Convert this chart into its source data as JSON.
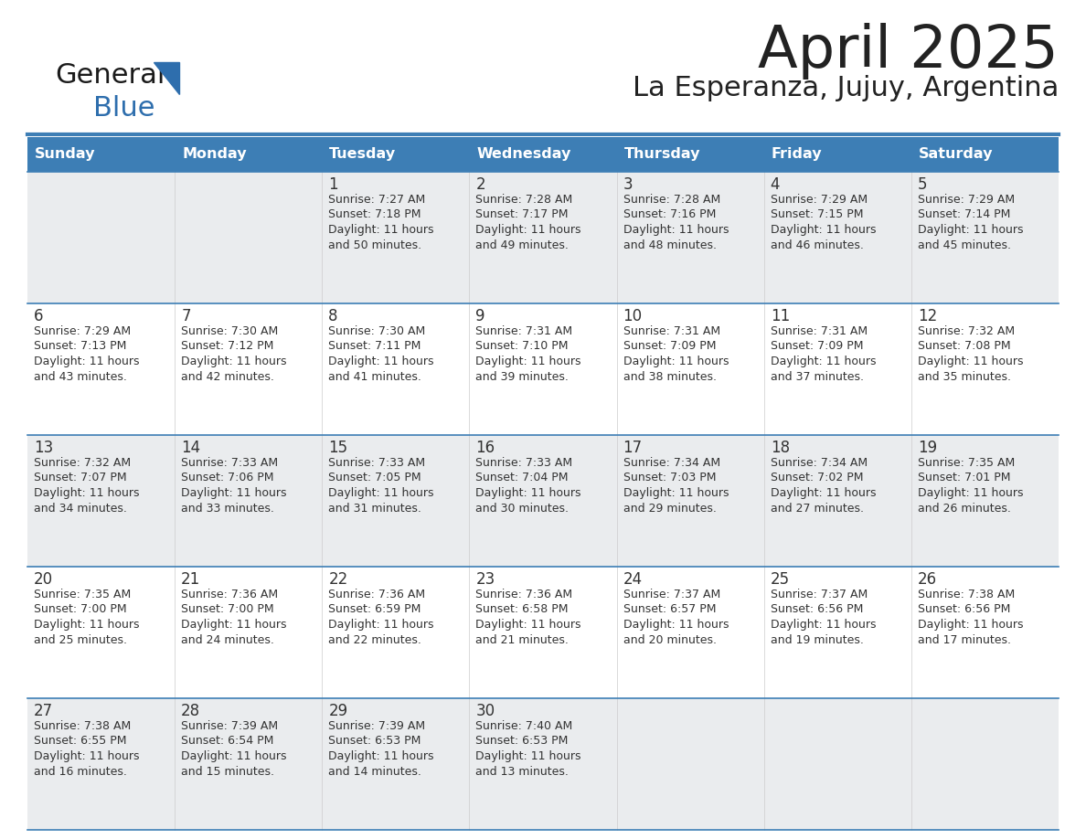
{
  "title": "April 2025",
  "subtitle": "La Esperanza, Jujuy, Argentina",
  "header_color": "#3D7EB5",
  "header_text_color": "#FFFFFF",
  "days_of_week": [
    "Sunday",
    "Monday",
    "Tuesday",
    "Wednesday",
    "Thursday",
    "Friday",
    "Saturday"
  ],
  "bg_color": "#FFFFFF",
  "row_colors": [
    "#F0F4F8",
    "#FFFFFF"
  ],
  "border_color": "#3D7EB5",
  "text_color": "#333333",
  "calendar_data": [
    [
      {
        "day": "",
        "sunrise": "",
        "sunset": "",
        "daylight": ""
      },
      {
        "day": "",
        "sunrise": "",
        "sunset": "",
        "daylight": ""
      },
      {
        "day": "1",
        "sunrise": "7:27 AM",
        "sunset": "7:18 PM",
        "daylight": "11 hours and 50 minutes."
      },
      {
        "day": "2",
        "sunrise": "7:28 AM",
        "sunset": "7:17 PM",
        "daylight": "11 hours and 49 minutes."
      },
      {
        "day": "3",
        "sunrise": "7:28 AM",
        "sunset": "7:16 PM",
        "daylight": "11 hours and 48 minutes."
      },
      {
        "day": "4",
        "sunrise": "7:29 AM",
        "sunset": "7:15 PM",
        "daylight": "11 hours and 46 minutes."
      },
      {
        "day": "5",
        "sunrise": "7:29 AM",
        "sunset": "7:14 PM",
        "daylight": "11 hours and 45 minutes."
      }
    ],
    [
      {
        "day": "6",
        "sunrise": "7:29 AM",
        "sunset": "7:13 PM",
        "daylight": "11 hours and 43 minutes."
      },
      {
        "day": "7",
        "sunrise": "7:30 AM",
        "sunset": "7:12 PM",
        "daylight": "11 hours and 42 minutes."
      },
      {
        "day": "8",
        "sunrise": "7:30 AM",
        "sunset": "7:11 PM",
        "daylight": "11 hours and 41 minutes."
      },
      {
        "day": "9",
        "sunrise": "7:31 AM",
        "sunset": "7:10 PM",
        "daylight": "11 hours and 39 minutes."
      },
      {
        "day": "10",
        "sunrise": "7:31 AM",
        "sunset": "7:09 PM",
        "daylight": "11 hours and 38 minutes."
      },
      {
        "day": "11",
        "sunrise": "7:31 AM",
        "sunset": "7:09 PM",
        "daylight": "11 hours and 37 minutes."
      },
      {
        "day": "12",
        "sunrise": "7:32 AM",
        "sunset": "7:08 PM",
        "daylight": "11 hours and 35 minutes."
      }
    ],
    [
      {
        "day": "13",
        "sunrise": "7:32 AM",
        "sunset": "7:07 PM",
        "daylight": "11 hours and 34 minutes."
      },
      {
        "day": "14",
        "sunrise": "7:33 AM",
        "sunset": "7:06 PM",
        "daylight": "11 hours and 33 minutes."
      },
      {
        "day": "15",
        "sunrise": "7:33 AM",
        "sunset": "7:05 PM",
        "daylight": "11 hours and 31 minutes."
      },
      {
        "day": "16",
        "sunrise": "7:33 AM",
        "sunset": "7:04 PM",
        "daylight": "11 hours and 30 minutes."
      },
      {
        "day": "17",
        "sunrise": "7:34 AM",
        "sunset": "7:03 PM",
        "daylight": "11 hours and 29 minutes."
      },
      {
        "day": "18",
        "sunrise": "7:34 AM",
        "sunset": "7:02 PM",
        "daylight": "11 hours and 27 minutes."
      },
      {
        "day": "19",
        "sunrise": "7:35 AM",
        "sunset": "7:01 PM",
        "daylight": "11 hours and 26 minutes."
      }
    ],
    [
      {
        "day": "20",
        "sunrise": "7:35 AM",
        "sunset": "7:00 PM",
        "daylight": "11 hours and 25 minutes."
      },
      {
        "day": "21",
        "sunrise": "7:36 AM",
        "sunset": "7:00 PM",
        "daylight": "11 hours and 24 minutes."
      },
      {
        "day": "22",
        "sunrise": "7:36 AM",
        "sunset": "6:59 PM",
        "daylight": "11 hours and 22 minutes."
      },
      {
        "day": "23",
        "sunrise": "7:36 AM",
        "sunset": "6:58 PM",
        "daylight": "11 hours and 21 minutes."
      },
      {
        "day": "24",
        "sunrise": "7:37 AM",
        "sunset": "6:57 PM",
        "daylight": "11 hours and 20 minutes."
      },
      {
        "day": "25",
        "sunrise": "7:37 AM",
        "sunset": "6:56 PM",
        "daylight": "11 hours and 19 minutes."
      },
      {
        "day": "26",
        "sunrise": "7:38 AM",
        "sunset": "6:56 PM",
        "daylight": "11 hours and 17 minutes."
      }
    ],
    [
      {
        "day": "27",
        "sunrise": "7:38 AM",
        "sunset": "6:55 PM",
        "daylight": "11 hours and 16 minutes."
      },
      {
        "day": "28",
        "sunrise": "7:39 AM",
        "sunset": "6:54 PM",
        "daylight": "11 hours and 15 minutes."
      },
      {
        "day": "29",
        "sunrise": "7:39 AM",
        "sunset": "6:53 PM",
        "daylight": "11 hours and 14 minutes."
      },
      {
        "day": "30",
        "sunrise": "7:40 AM",
        "sunset": "6:53 PM",
        "daylight": "11 hours and 13 minutes."
      },
      {
        "day": "",
        "sunrise": "",
        "sunset": "",
        "daylight": ""
      },
      {
        "day": "",
        "sunrise": "",
        "sunset": "",
        "daylight": ""
      },
      {
        "day": "",
        "sunrise": "",
        "sunset": "",
        "daylight": ""
      }
    ]
  ],
  "logo_text1": "General",
  "logo_text2": "Blue",
  "logo_text1_color": "#1a1a1a",
  "logo_text2_color": "#2E6EAD",
  "logo_triangle_color": "#2E6EAD"
}
